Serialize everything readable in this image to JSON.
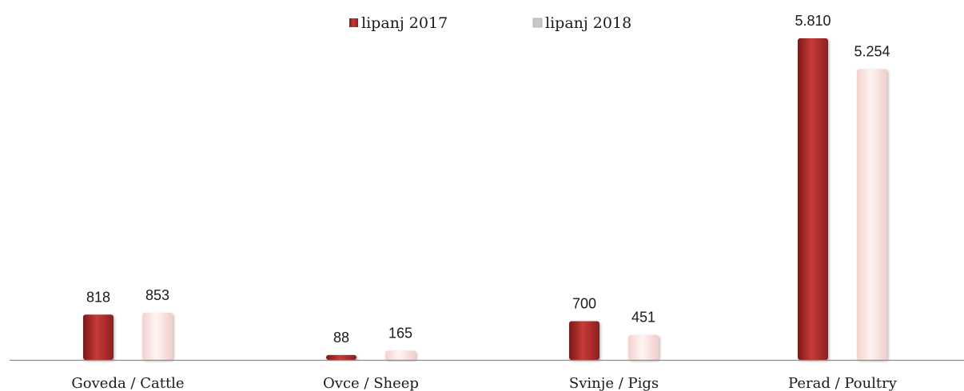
{
  "chart_data": {
    "type": "bar",
    "title": "",
    "xlabel": "",
    "ylabel": "",
    "categories": [
      "Goveda / Cattle",
      "Ovce / Sheep",
      "Svinje / Pigs",
      "Perad / Poultry"
    ],
    "series": [
      {
        "name": "lipanj 2017",
        "values": [
          818,
          88,
          700,
          5810
        ],
        "labels": [
          "818",
          "88",
          "700",
          "5.810"
        ],
        "color": "#a52a2a",
        "color_light": "#d24a45",
        "color_dark": "#7a1a1a"
      },
      {
        "name": "lipanj 2018",
        "values": [
          853,
          165,
          451,
          5254
        ],
        "labels": [
          "853",
          "165",
          "451",
          "5.254"
        ],
        "color": "#fbe2e0",
        "color_light": "#fff5f4",
        "color_dark": "#e8c6c2"
      }
    ],
    "ylim": [
      0,
      6000
    ],
    "grid": false,
    "legend": "top"
  }
}
